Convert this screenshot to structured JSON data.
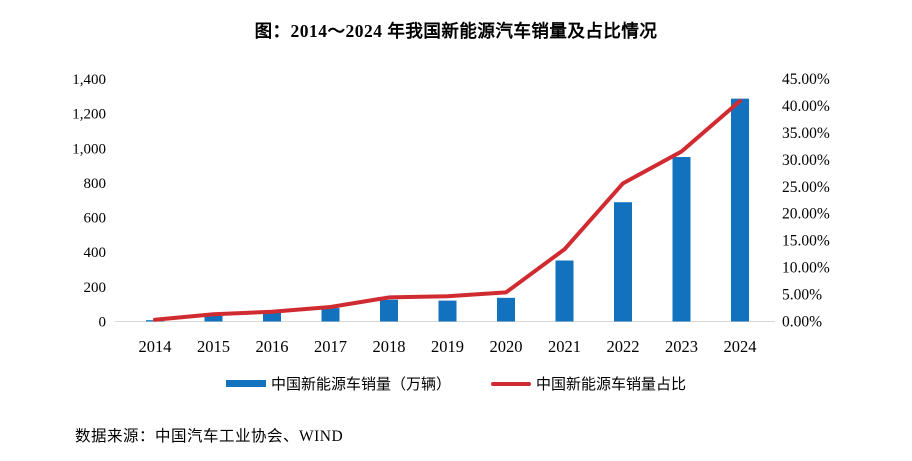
{
  "title": "图：2014～2024 年我国新能源汽车销量及占比情况",
  "source": "数据来源：中国汽车工业协会、WIND",
  "legend": {
    "sales_label": "中国新能源车销量（万辆）",
    "share_label": "中国新能源车销量占比"
  },
  "colors": {
    "bar": "#1272BE",
    "line": "#D02B30",
    "axis_line": "#D8D8D8",
    "text": "#000000"
  },
  "chart_data": {
    "type": "bar",
    "subtype": "bar+line combo, dual y-axis",
    "title": "图：2014～2024 年我国新能源汽车销量及占比情况",
    "categories": [
      "2014",
      "2015",
      "2016",
      "2017",
      "2018",
      "2019",
      "2020",
      "2021",
      "2022",
      "2023",
      "2024"
    ],
    "series": [
      {
        "name": "中国新能源车销量（万辆）",
        "chart_type": "bar",
        "y_axis": "left",
        "color": "#1272BE",
        "values": [
          7.5,
          33.1,
          50.7,
          77.7,
          125.6,
          120.6,
          136.7,
          352.1,
          688.7,
          949.5,
          1286.6
        ]
      },
      {
        "name": "中国新能源车销量占比",
        "chart_type": "line",
        "y_axis": "right",
        "color": "#D02B30",
        "values": [
          0.32,
          1.35,
          1.81,
          2.69,
          4.47,
          4.68,
          5.4,
          13.4,
          25.64,
          31.55,
          40.92
        ]
      }
    ],
    "left_axis": {
      "min": 0,
      "max": 1400,
      "step": 200,
      "tick_labels": [
        "0",
        "200",
        "400",
        "600",
        "800",
        "1,000",
        "1,200",
        "1,400"
      ]
    },
    "right_axis": {
      "min": 0,
      "max": 45,
      "step": 5,
      "unit": "%",
      "tick_labels": [
        "0.00%",
        "5.00%",
        "10.00%",
        "15.00%",
        "20.00%",
        "25.00%",
        "30.00%",
        "35.00%",
        "40.00%",
        "45.00%"
      ]
    },
    "grid": false,
    "legend_position": "bottom"
  }
}
